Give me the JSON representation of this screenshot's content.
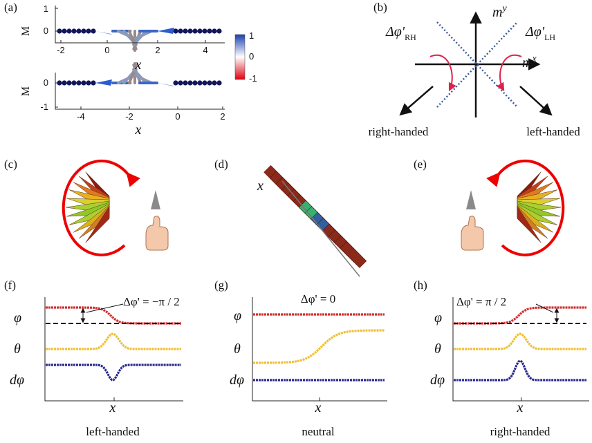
{
  "panels": {
    "a": {
      "label": "(a)",
      "top": {
        "y_label": "M",
        "x_label": "x",
        "xticks": [
          "-2",
          "0",
          "2",
          "4"
        ],
        "yticks": [
          "1",
          "0"
        ]
      },
      "bottom": {
        "y_label": "M",
        "x_label": "x",
        "xticks": [
          "-4",
          "-2",
          "0",
          "2"
        ],
        "yticks": [
          "0",
          "-1"
        ]
      },
      "colorbar": [
        "1",
        "0",
        "-1"
      ]
    },
    "b": {
      "label": "(b)",
      "my": "m",
      "my_sup": "y",
      "mx": "m",
      "mx_sup": "x",
      "rh": "Δφ'",
      "rh_sub": "RH",
      "lh": "Δφ'",
      "lh_sub": "LH",
      "right": "right-handed",
      "left": "left-handed"
    },
    "c": {
      "label": "(c)"
    },
    "d": {
      "label": "(d)",
      "axis": "x"
    },
    "e": {
      "label": "(e)"
    },
    "f": {
      "label": "(f)",
      "phi": "φ",
      "theta": "θ",
      "dphi": "dφ",
      "x": "x",
      "annotation": "Δφ' = −π / 2",
      "caption": "left-handed"
    },
    "g": {
      "label": "(g)",
      "phi": "φ",
      "theta": "θ",
      "dphi": "dφ",
      "x": "x",
      "annotation": "Δφ' = 0",
      "caption": "neutral"
    },
    "h": {
      "label": "(h)",
      "phi": "φ",
      "theta": "θ",
      "dphi": "dφ",
      "x": "x",
      "annotation": "Δφ' = π / 2",
      "caption": "right-handed"
    }
  }
}
